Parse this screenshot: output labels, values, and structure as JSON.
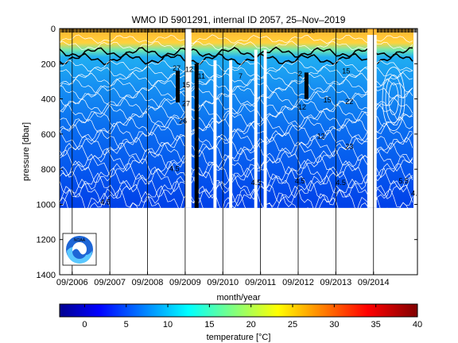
{
  "chart_data": {
    "type": "heatmap",
    "title": "WMO ID 5901291, internal ID 2057, 25–Nov–2019",
    "xlabel": "month/year",
    "ylabel": "pressure [dbar]",
    "x_ticks": [
      "09/2006",
      "09/2007",
      "09/2008",
      "09/2009",
      "09/2010",
      "09/2011",
      "09/2012",
      "09/2013",
      "09/2014"
    ],
    "x_range": [
      "05/2006",
      "11/2015"
    ],
    "y_ticks": [
      0,
      200,
      400,
      600,
      800,
      1000,
      1200,
      1400
    ],
    "ylim": [
      0,
      1400
    ],
    "y_reversed": true,
    "profile_max_pressure": 1020,
    "colorbar": {
      "label": "temperature [°C]",
      "ticks": [
        0,
        5,
        10,
        15,
        20,
        25,
        30,
        35,
        40
      ],
      "range": [
        -3,
        40
      ],
      "colormap": "jet"
    },
    "field": {
      "surface_temperature_range": [
        25,
        29
      ],
      "thermocline_depth_dbar": [
        120,
        200
      ],
      "temperature_at_400dbar": 9,
      "temperature_at_1000dbar": 5
    },
    "contour_labels": [
      {
        "x": "05/2009",
        "y": 240,
        "text": "27"
      },
      {
        "x": "09/2009",
        "y": 245,
        "text": "12"
      },
      {
        "x": "01/2010",
        "y": 285,
        "text": "11"
      },
      {
        "x": "08/2009",
        "y": 335,
        "text": "15"
      },
      {
        "x": "02/2011",
        "y": 285,
        "text": "7"
      },
      {
        "x": "09/2012",
        "y": 270,
        "text": "2"
      },
      {
        "x": "08/2009",
        "y": 440,
        "text": "27"
      },
      {
        "x": "07/2009",
        "y": 540,
        "text": "26"
      },
      {
        "x": "09/2012",
        "y": 460,
        "text": "12"
      },
      {
        "x": "05/2013",
        "y": 420,
        "text": "15"
      },
      {
        "x": "11/2013",
        "y": 255,
        "text": "15"
      },
      {
        "x": "12/2013",
        "y": 430,
        "text": "22"
      },
      {
        "x": "12/2013",
        "y": 685,
        "text": "23"
      },
      {
        "x": "03/2013",
        "y": 625,
        "text": "12"
      },
      {
        "x": "04/2009",
        "y": 810,
        "text": "4.5"
      },
      {
        "x": "06/2011",
        "y": 890,
        "text": "4.5"
      },
      {
        "x": "08/2012",
        "y": 880,
        "text": "4.5"
      },
      {
        "x": "09/2013",
        "y": 890,
        "text": "4.5"
      },
      {
        "x": "05/2015",
        "y": 880,
        "text": "5.5"
      },
      {
        "x": "09/2015",
        "y": 950,
        "text": "4.5"
      },
      {
        "x": "06/2007",
        "y": 1000,
        "text": "4.5"
      },
      {
        "x": "12/2012",
        "y": 25,
        "text": "28"
      }
    ]
  },
  "logo": {
    "text": "NOAA"
  }
}
